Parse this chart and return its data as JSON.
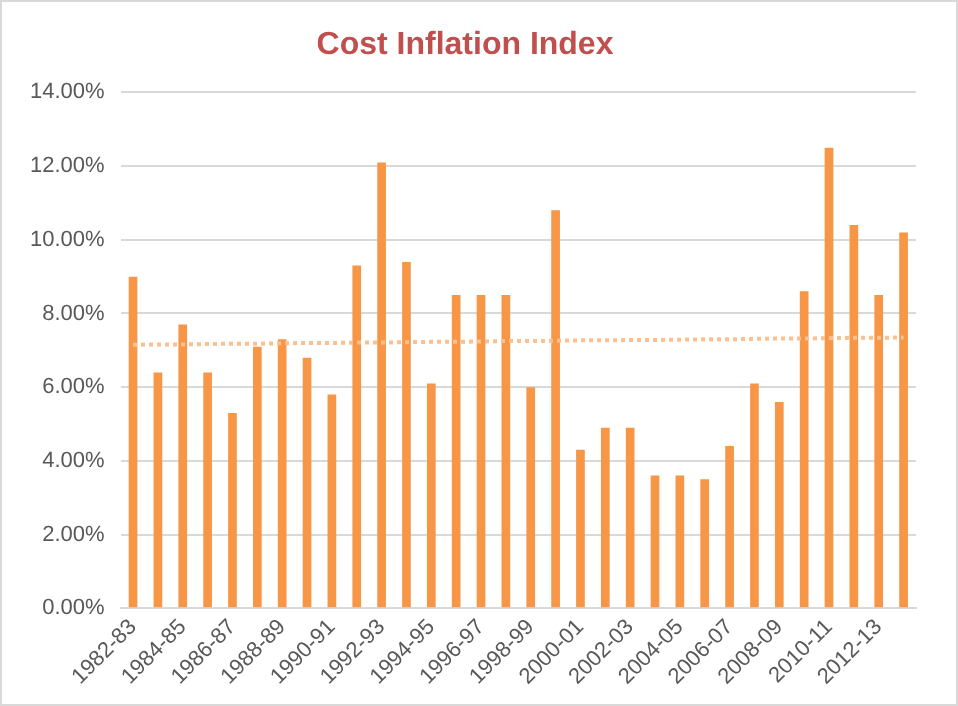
{
  "chart_data": {
    "type": "bar",
    "title": "Cost Inflation Index",
    "categories": [
      "1982-83",
      null,
      "1984-85",
      null,
      "1986-87",
      null,
      "1988-89",
      null,
      "1990-91",
      null,
      "1992-93",
      null,
      "1994-95",
      null,
      "1996-97",
      null,
      "1998-99",
      null,
      "2000-01",
      null,
      "2002-03",
      null,
      "2004-05",
      null,
      "2006-07",
      null,
      "2008-09",
      null,
      "2010-11",
      null,
      "2012-13",
      null
    ],
    "series": [
      {
        "color": "#f79646",
        "values": [
          9.0,
          6.4,
          7.7,
          6.4,
          5.3,
          7.1,
          7.3,
          6.8,
          5.8,
          9.3,
          12.1,
          9.4,
          6.1,
          8.5,
          8.5,
          8.5,
          6.0,
          10.8,
          4.3,
          4.9,
          4.9,
          3.6,
          3.6,
          3.5,
          4.4,
          6.1,
          5.6,
          8.6,
          12.5,
          10.4,
          8.5,
          10.2
        ]
      },
      {
        "type": "line",
        "color": "#fbc08f",
        "line_style": "dotted",
        "values": [
          7.15,
          7.16,
          7.16,
          7.17,
          7.18,
          7.18,
          7.19,
          7.2,
          7.2,
          7.21,
          7.21,
          7.22,
          7.23,
          7.23,
          7.24,
          7.25,
          7.25,
          7.26,
          7.27,
          7.27,
          7.28,
          7.28,
          7.29,
          7.3,
          7.3,
          7.31,
          7.32,
          7.32,
          7.33,
          7.34,
          7.34,
          7.35
        ]
      }
    ],
    "ylim": [
      0,
      14
    ],
    "yticks": [
      {
        "value": 0,
        "label": "0.00%"
      },
      {
        "value": 2,
        "label": "2.00%"
      },
      {
        "value": 4,
        "label": "4.00%"
      },
      {
        "value": 6,
        "label": "6.00%"
      },
      {
        "value": 8,
        "label": "8.00%"
      },
      {
        "value": 10,
        "label": "10.00%"
      },
      {
        "value": 12,
        "label": "12.00%"
      },
      {
        "value": 14,
        "label": "14.00%"
      }
    ],
    "grid": "y",
    "legend": false
  }
}
